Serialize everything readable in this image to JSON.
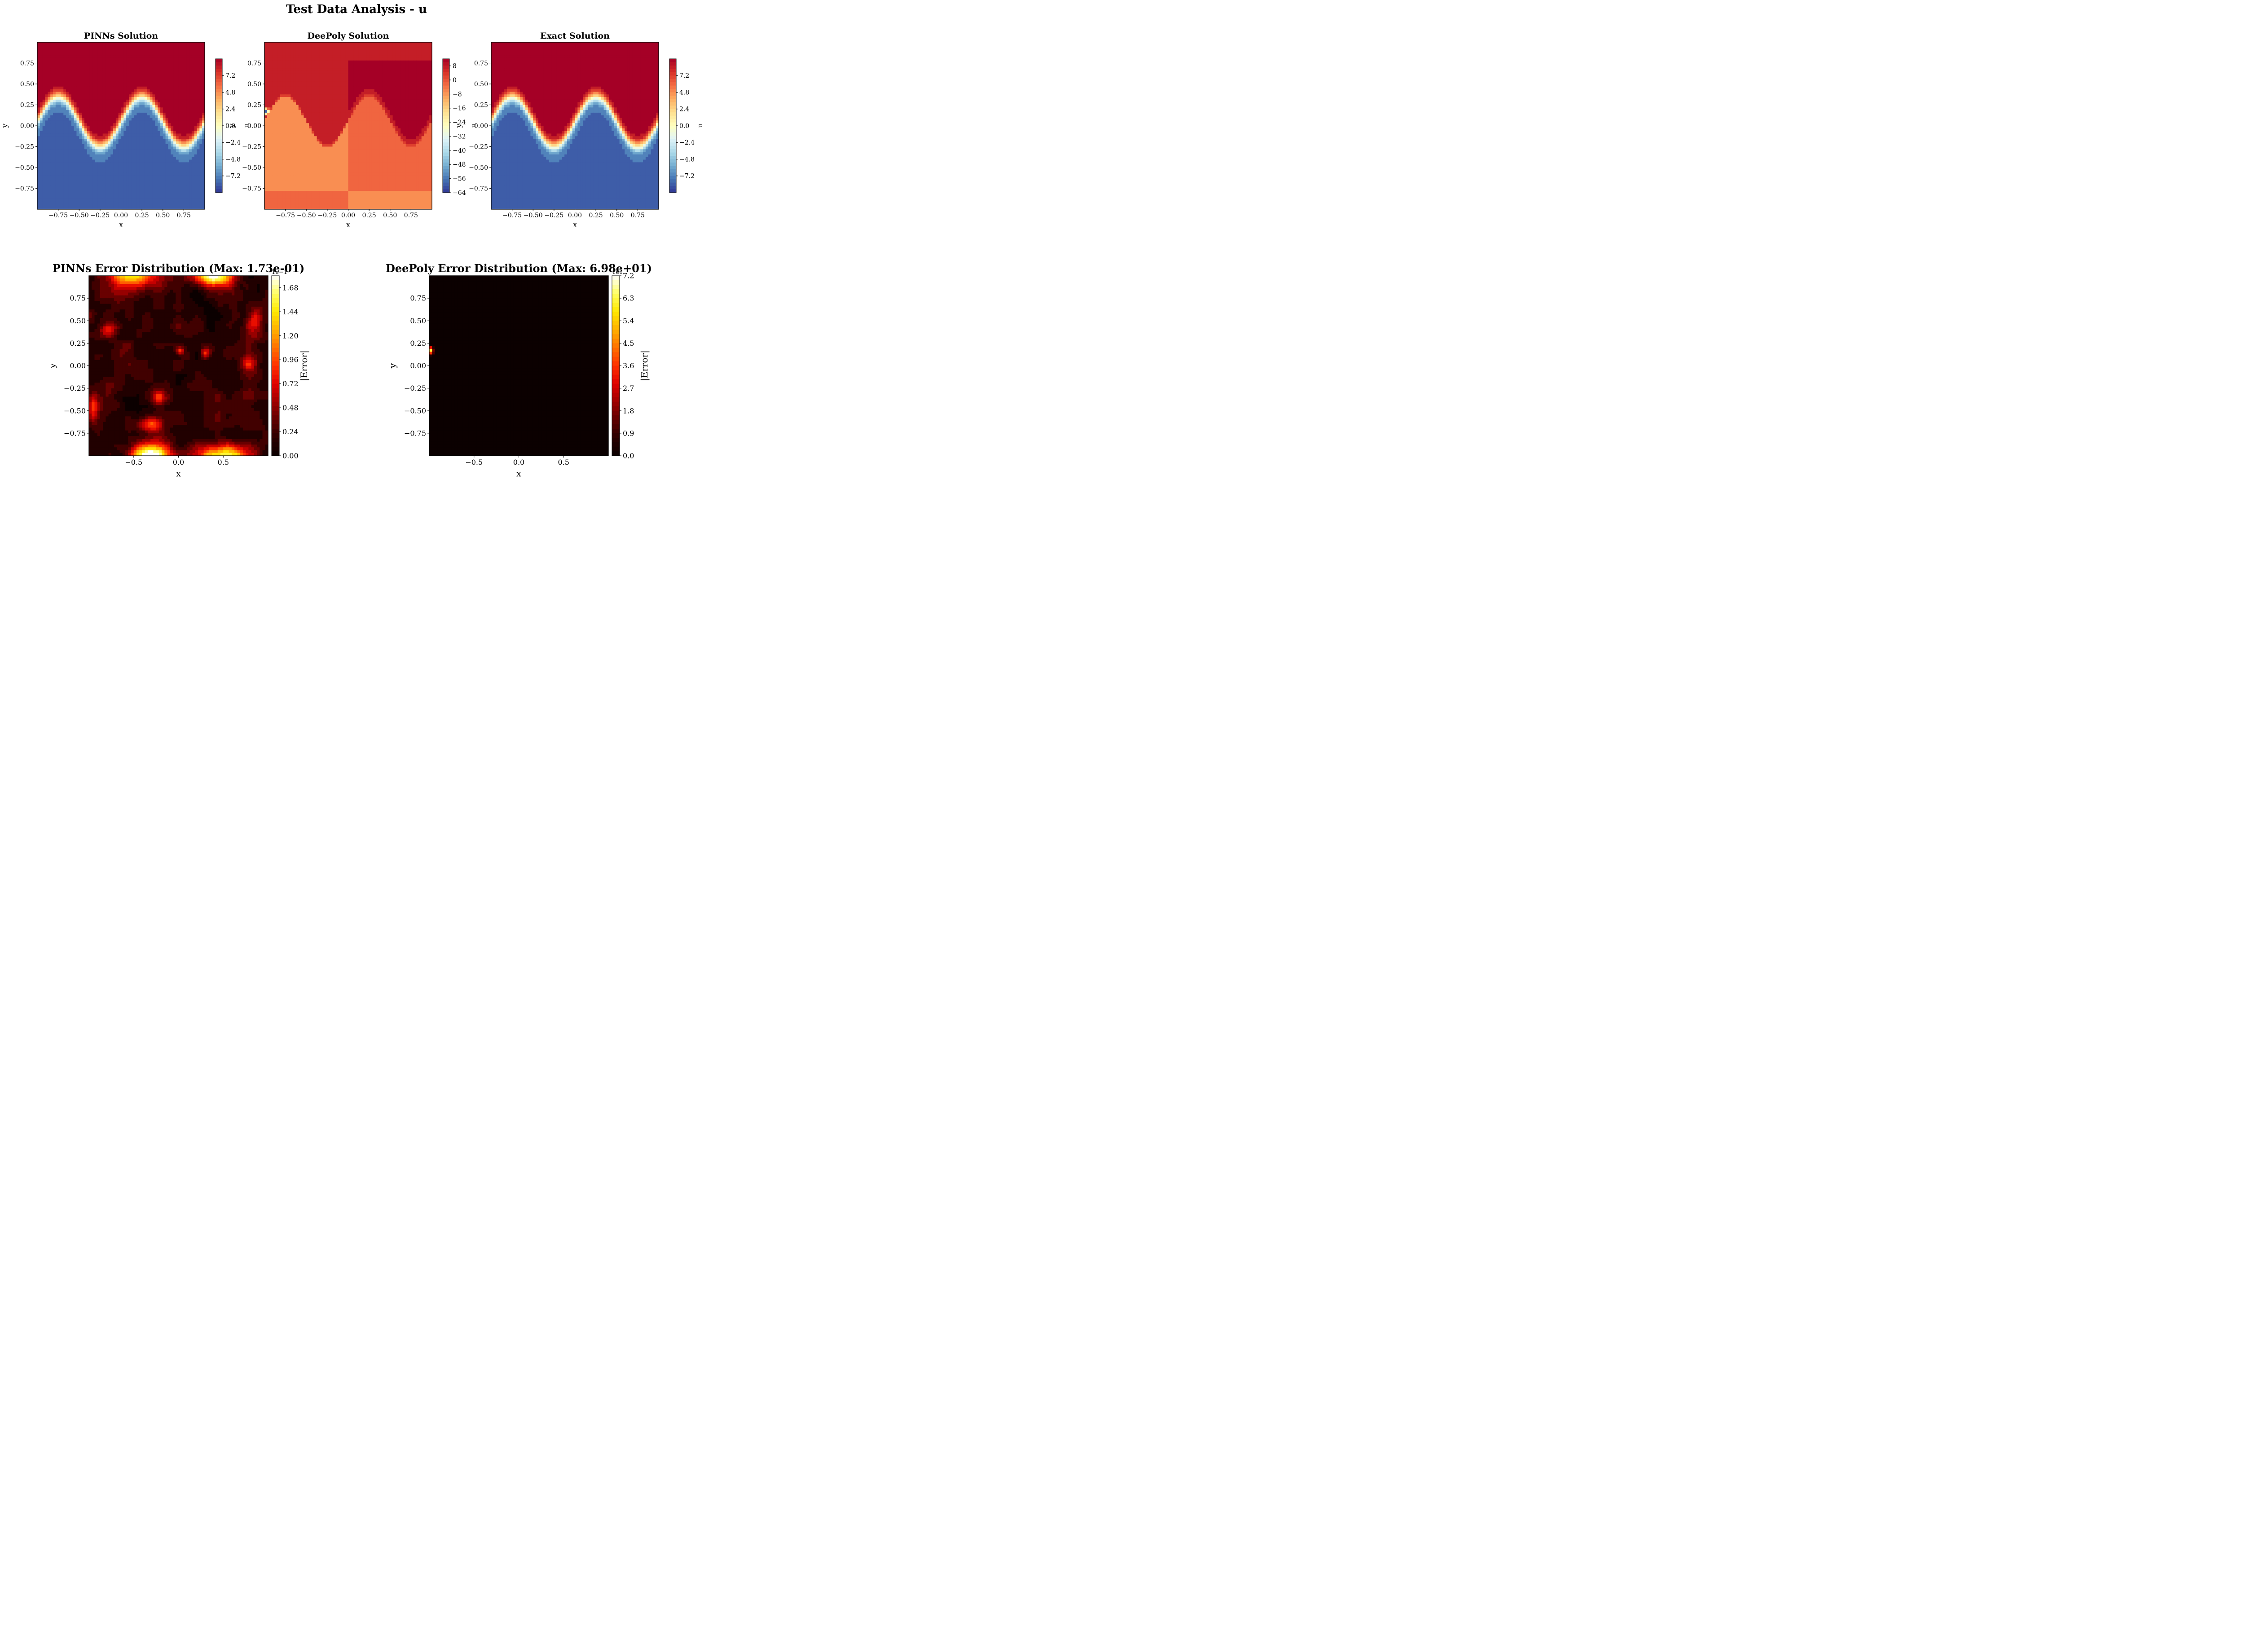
{
  "figure": {
    "title": "Test Data Analysis - u"
  },
  "colors": {
    "rdylbu_r": [
      "#313695",
      "#4575b4",
      "#74add1",
      "#abd9e9",
      "#e0f3f8",
      "#ffffbf",
      "#fee090",
      "#fdae61",
      "#f46d43",
      "#d73027",
      "#a50026"
    ],
    "hot": [
      "#0b0000",
      "#2a0000",
      "#600000",
      "#a00000",
      "#e00000",
      "#ff3000",
      "#ff7000",
      "#ffb000",
      "#ffe800",
      "#ffff60",
      "#ffffff"
    ]
  },
  "chart_data": [
    {
      "type": "heatmap",
      "title": "PINNs Solution",
      "xlabel": "x",
      "ylabel": "y",
      "xlim": [
        -1,
        1
      ],
      "ylim": [
        -1,
        1
      ],
      "xticks": [
        "−0.75",
        "−0.50",
        "−0.25",
        "0.00",
        "0.25",
        "0.50",
        "0.75"
      ],
      "xtick_values": [
        -0.75,
        -0.5,
        -0.25,
        0,
        0.25,
        0.5,
        0.75
      ],
      "yticks": [
        "0.75",
        "0.50",
        "0.25",
        "0.00",
        "−0.25",
        "−0.50",
        "−0.75"
      ],
      "ytick_values": [
        0.75,
        0.5,
        0.25,
        0,
        -0.25,
        -0.5,
        -0.75
      ],
      "colormap": "RdYlBu_r",
      "colorbar": {
        "label": "u",
        "range": [
          -9.6,
          9.6
        ],
        "ticks": [
          "7.2",
          "4.8",
          "2.4",
          "0.0",
          "−2.4",
          "−4.8",
          "−7.2"
        ],
        "tick_values": [
          7.2,
          4.8,
          2.4,
          0,
          -2.4,
          -4.8,
          -7.2
        ]
      },
      "field": "solution",
      "high": 9.4,
      "low": -7.6,
      "variant": "pinns"
    },
    {
      "type": "heatmap",
      "title": "DeePoly Solution",
      "xlabel": "x",
      "ylabel": "y",
      "xlim": [
        -1,
        1
      ],
      "ylim": [
        -1,
        1
      ],
      "xticks": [
        "−0.75",
        "−0.50",
        "−0.25",
        "0.00",
        "0.25",
        "0.50",
        "0.75"
      ],
      "xtick_values": [
        -0.75,
        -0.5,
        -0.25,
        0,
        0.25,
        0.5,
        0.75
      ],
      "yticks": [
        "0.75",
        "0.50",
        "0.25",
        "0.00",
        "−0.25",
        "−0.50",
        "−0.75"
      ],
      "ytick_values": [
        0.75,
        0.5,
        0.25,
        0,
        -0.25,
        -0.5,
        -0.75
      ],
      "colormap": "RdYlBu_r",
      "colorbar": {
        "label": "u",
        "range": [
          -64,
          12
        ],
        "ticks": [
          "8",
          "0",
          "−8",
          "−16",
          "−24",
          "−32",
          "−40",
          "−48",
          "−56",
          "−64"
        ],
        "tick_values": [
          8,
          0,
          -8,
          -16,
          -24,
          -32,
          -40,
          -48,
          -56,
          -64
        ]
      },
      "field": "solution",
      "high": 9.4,
      "low": -7.6,
      "variant": "deepoly"
    },
    {
      "type": "heatmap",
      "title": "Exact Solution",
      "xlabel": "x",
      "ylabel": "y",
      "xlim": [
        -1,
        1
      ],
      "ylim": [
        -1,
        1
      ],
      "xticks": [
        "−0.75",
        "−0.50",
        "−0.25",
        "0.00",
        "0.25",
        "0.50",
        "0.75"
      ],
      "xtick_values": [
        -0.75,
        -0.5,
        -0.25,
        0,
        0.25,
        0.5,
        0.75
      ],
      "yticks": [
        "0.75",
        "0.50",
        "0.25",
        "0.00",
        "−0.25",
        "−0.50",
        "−0.75"
      ],
      "ytick_values": [
        0.75,
        0.5,
        0.25,
        0,
        -0.25,
        -0.5,
        -0.75
      ],
      "colormap": "RdYlBu_r",
      "colorbar": {
        "label": "u",
        "range": [
          -9.6,
          9.6
        ],
        "ticks": [
          "7.2",
          "4.8",
          "2.4",
          "0.0",
          "−2.4",
          "−4.8",
          "−7.2"
        ],
        "tick_values": [
          7.2,
          4.8,
          2.4,
          0,
          -2.4,
          -4.8,
          -7.2
        ]
      },
      "field": "solution",
      "high": 9.4,
      "low": -7.6,
      "variant": "exact"
    },
    {
      "type": "heatmap",
      "title": "PINNs Error Distribution (Max: 1.73e-01)",
      "xlabel": "x",
      "ylabel": "y",
      "xlim": [
        -1,
        1
      ],
      "ylim": [
        -1,
        1
      ],
      "xticks": [
        "−0.5",
        "0.0",
        "0.5"
      ],
      "xtick_values": [
        -0.5,
        0,
        0.5
      ],
      "yticks": [
        "0.75",
        "0.50",
        "0.25",
        "0.00",
        "−0.25",
        "−0.50",
        "−0.75"
      ],
      "ytick_values": [
        0.75,
        0.5,
        0.25,
        0,
        -0.25,
        -0.5,
        -0.75
      ],
      "colormap": "hot",
      "colorbar": {
        "label": "|Error|",
        "range": [
          0,
          1.8
        ],
        "offset_text": "1e−1",
        "ticks": [
          "1.68",
          "1.44",
          "1.20",
          "0.96",
          "0.72",
          "0.48",
          "0.24",
          "0.00"
        ],
        "tick_values": [
          1.68,
          1.44,
          1.2,
          0.96,
          0.72,
          0.48,
          0.24,
          0
        ]
      },
      "field": "error_pinns",
      "max_error": 0.173
    },
    {
      "type": "heatmap",
      "title": "DeePoly Error Distribution (Max: 6.98e+01)",
      "xlabel": "x",
      "ylabel": "y",
      "xlim": [
        -1,
        1
      ],
      "ylim": [
        -1,
        1
      ],
      "xticks": [
        "−0.5",
        "0.0",
        "0.5"
      ],
      "xtick_values": [
        -0.5,
        0,
        0.5
      ],
      "yticks": [
        "0.75",
        "0.50",
        "0.25",
        "0.00",
        "−0.25",
        "−0.50",
        "−0.75"
      ],
      "ytick_values": [
        0.75,
        0.5,
        0.25,
        0,
        -0.25,
        -0.5,
        -0.75
      ],
      "colormap": "hot",
      "colorbar": {
        "label": "|Error|",
        "range": [
          0,
          7.2
        ],
        "offset_text": "1e1",
        "ticks": [
          "7.2",
          "6.3",
          "5.4",
          "4.5",
          "3.6",
          "2.7",
          "1.8",
          "0.9",
          "0.0"
        ],
        "tick_values": [
          7.2,
          6.3,
          5.4,
          4.5,
          3.6,
          2.7,
          1.8,
          0.9,
          0
        ]
      },
      "field": "error_deepoly",
      "max_error": 69.8,
      "spike_at": [
        -1,
        0.17
      ]
    }
  ]
}
